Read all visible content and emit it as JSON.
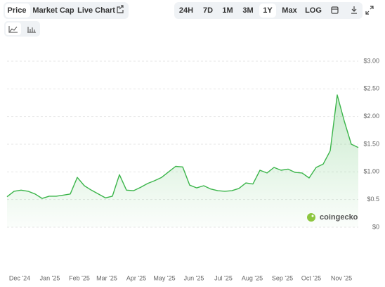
{
  "tabs": [
    "Price",
    "Market Cap",
    "Live Chart"
  ],
  "ranges": [
    "24H",
    "7D",
    "1M",
    "3M",
    "1Y",
    "Max",
    "LOG"
  ],
  "active_range": "1Y",
  "watermark": "coingecko",
  "chart_data": {
    "type": "line",
    "x_labels": [
      "Dec '24",
      "Jan '25",
      "Feb '25",
      "Mar '25",
      "Apr '25",
      "May '25",
      "Jun '25",
      "Jul '25",
      "Aug '25",
      "Sep '25",
      "Oct '25",
      "Nov '25"
    ],
    "series": [
      {
        "name": "Price",
        "color": "#3bb54a",
        "values": [
          0.55,
          0.65,
          0.67,
          0.65,
          0.6,
          0.52,
          0.56,
          0.56,
          0.58,
          0.6,
          0.9,
          0.75,
          0.67,
          0.6,
          0.53,
          0.56,
          0.95,
          0.67,
          0.66,
          0.72,
          0.79,
          0.84,
          0.9,
          1.0,
          1.1,
          1.09,
          0.76,
          0.71,
          0.75,
          0.69,
          0.66,
          0.65,
          0.66,
          0.7,
          0.8,
          0.78,
          1.03,
          0.98,
          1.08,
          1.03,
          1.05,
          0.99,
          0.98,
          0.89,
          1.08,
          1.14,
          1.38,
          2.39,
          1.92,
          1.5,
          1.44
        ]
      }
    ],
    "ylim": [
      0,
      3
    ],
    "yticks": [
      {
        "value": 0,
        "label": "$0"
      },
      {
        "value": 0.5,
        "label": "$0.5"
      },
      {
        "value": 1,
        "label": "$1.00"
      },
      {
        "value": 1.5,
        "label": "$1.50"
      },
      {
        "value": 2,
        "label": "$2.00"
      },
      {
        "value": 2.5,
        "label": "$2.50"
      },
      {
        "value": 3,
        "label": "$3.00"
      }
    ],
    "grid": true
  }
}
